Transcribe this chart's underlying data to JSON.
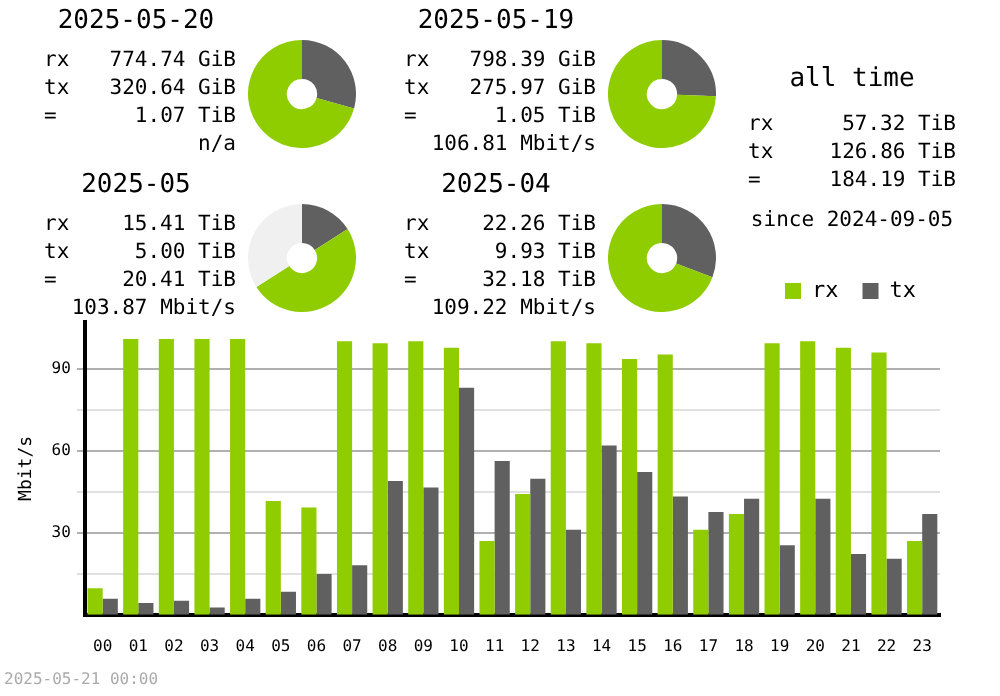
{
  "chart_data": [
    {
      "type": "donut",
      "title": "2025-05-20",
      "categories": [
        null,
        null
      ],
      "values": [
        29.3,
        70.7
      ],
      "colors": [
        "#606060",
        "#8fcc00"
      ],
      "legend": false,
      "annotations": [
        "rx 774.74 GiB",
        "tx 320.64 GiB",
        "= 1.07 TiB",
        "n/a"
      ]
    },
    {
      "type": "donut",
      "title": "2025-05-19",
      "categories": [
        null,
        null
      ],
      "values": [
        25.7,
        74.3
      ],
      "colors": [
        "#606060",
        "#8fcc00"
      ],
      "legend": false,
      "annotations": [
        "rx 798.39 GiB",
        "tx 275.97 GiB",
        "= 1.05 TiB",
        "106.81 Mbit/s"
      ]
    },
    {
      "type": "other",
      "title": "all time",
      "annotations": [
        "rx 57.32 TiB",
        "tx 126.86 TiB",
        "= 184.19 TiB",
        "since 2024-09-05"
      ]
    },
    {
      "type": "donut",
      "title": "2025-05",
      "categories": [
        null,
        null,
        null
      ],
      "values": [
        16,
        50,
        34
      ],
      "colors": [
        "#606060",
        "#8fcc00",
        "#f0f0f0"
      ],
      "legend": false,
      "annotations": [
        "rx 15.41 TiB",
        "tx 5.00 TiB",
        "= 20.41 TiB",
        "103.87 Mbit/s"
      ]
    },
    {
      "type": "donut",
      "title": "2025-04",
      "categories": [
        null,
        null
      ],
      "values": [
        30.8,
        69.2
      ],
      "colors": [
        "#606060",
        "#8fcc00"
      ],
      "legend": false,
      "annotations": [
        "rx 22.26 TiB",
        "tx 9.93 TiB",
        "= 32.18 TiB",
        "109.22 Mbit/s"
      ]
    },
    {
      "type": "bar",
      "categories": [
        "00",
        "01",
        "02",
        "03",
        "04",
        "05",
        "06",
        "07",
        "08",
        "09",
        "10",
        "11",
        "12",
        "13",
        "14",
        "15",
        "16",
        "17",
        "18",
        "19",
        "20",
        "21",
        "22",
        "23"
      ],
      "series": [
        {
          "name": "rx",
          "color": "#8fcc00",
          "values": [
            9.7,
            100.8,
            100.8,
            100.8,
            100.8,
            41.6,
            39.2,
            100,
            99.2,
            100,
            97.6,
            27,
            44.1,
            100,
            99.2,
            93.5,
            95.1,
            31.1,
            36.8,
            99.2,
            100,
            97.6,
            95.9,
            27
          ]
        },
        {
          "name": "tx",
          "color": "#606060",
          "values": [
            5.9,
            4.3,
            5.1,
            2.7,
            5.9,
            8.4,
            14.9,
            18.1,
            48.9,
            46.5,
            83,
            56.2,
            49.7,
            31.1,
            61.9,
            52.2,
            43.2,
            37.6,
            42.4,
            25.4,
            42.4,
            22.2,
            20.5,
            36.8
          ]
        }
      ],
      "ylabel": "Mbit/s",
      "ylim": [
        0,
        107
      ],
      "yticks": [
        {
          "value": 15,
          "label": null
        },
        30,
        {
          "value": 45,
          "label": null
        },
        60,
        {
          "value": 75,
          "label": null
        },
        90
      ],
      "grid": "y",
      "legend": "top right",
      "annotations": [
        "2025-05-21 00:00"
      ]
    }
  ]
}
